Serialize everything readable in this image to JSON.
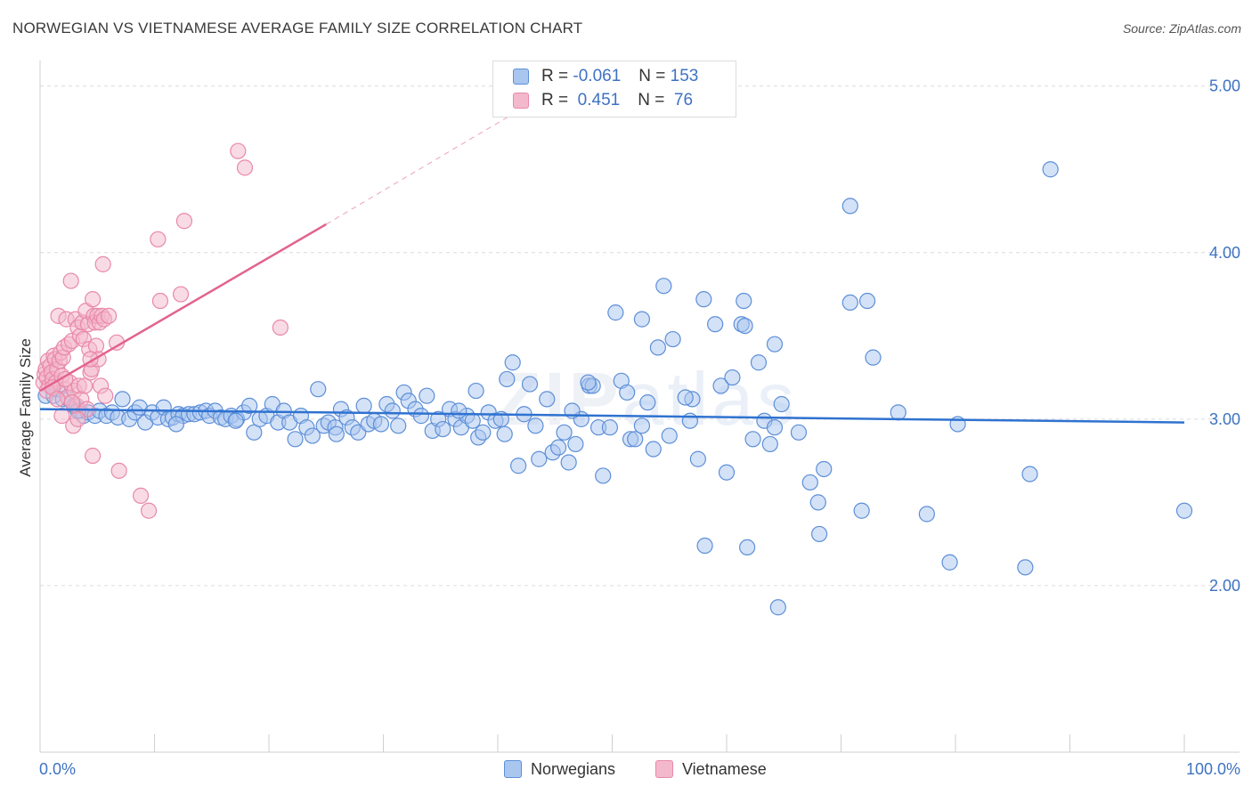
{
  "header": {
    "title": "NORWEGIAN VS VIETNAMESE AVERAGE FAMILY SIZE CORRELATION CHART",
    "source": "Source: ZipAtlas.com"
  },
  "watermark": {
    "zip": "ZIP",
    "atlas": "atlas"
  },
  "legend": {
    "rows": [
      {
        "r_label": "R = ",
        "r_value": "-0.061",
        "n_label": "N = ",
        "n_value": "153"
      },
      {
        "r_label": "R = ",
        "r_value": " 0.451",
        "n_label": "N = ",
        "n_value": " 76"
      }
    ],
    "series": [
      "Norwegians",
      "Vietnamese"
    ]
  },
  "colors": {
    "norwegians_fill": "#a9c6ef",
    "norwegians_stroke": "#5d8fd8",
    "norwegians_line": "#2f72d0",
    "vietnamese_fill": "#f4b8cc",
    "vietnamese_stroke": "#e889a8",
    "vietnamese_line": "#e2628f",
    "grid": "#dcdcdc",
    "axis_label": "#3e72c2"
  },
  "chart_data": {
    "type": "scatter",
    "title": "NORWEGIAN VS VIETNAMESE AVERAGE FAMILY SIZE CORRELATION CHART",
    "xlabel": "",
    "ylabel": "Average Family Size",
    "x_tick_labels": [
      "0.0%",
      "100.0%"
    ],
    "y_ticks": [
      2,
      3,
      4,
      5
    ],
    "y_tick_labels": [
      "2.00",
      "3.00",
      "4.00",
      "5.00"
    ],
    "xlim": [
      0,
      100
    ],
    "ylim": [
      1.0,
      5.1
    ],
    "grid": true,
    "legend_position": "bottom",
    "series": [
      {
        "name": "Norwegians",
        "R": -0.061,
        "N": 153,
        "trend": {
          "x": [
            0,
            100
          ],
          "y": [
            3.06,
            2.98
          ]
        },
        "points": [
          [
            0.5,
            3.14
          ],
          [
            1.2,
            3.14
          ],
          [
            1.5,
            3.18
          ],
          [
            2,
            3.12
          ],
          [
            2.5,
            3.12
          ],
          [
            3,
            3.08
          ],
          [
            3.5,
            3.05
          ],
          [
            3.8,
            3.02
          ],
          [
            4.2,
            3.04
          ],
          [
            4.8,
            3.02
          ],
          [
            5.2,
            3.05
          ],
          [
            5.8,
            3.02
          ],
          [
            6.3,
            3.04
          ],
          [
            6.8,
            3.01
          ],
          [
            7.2,
            3.12
          ],
          [
            7.8,
            3.0
          ],
          [
            8.3,
            3.04
          ],
          [
            8.7,
            3.07
          ],
          [
            9.2,
            2.98
          ],
          [
            9.8,
            3.04
          ],
          [
            10.3,
            3.01
          ],
          [
            10.8,
            3.07
          ],
          [
            11.2,
            3.0
          ],
          [
            11.6,
            3.01
          ],
          [
            12.1,
            3.03
          ],
          [
            12.5,
            3.02
          ],
          [
            13,
            3.03
          ],
          [
            13.5,
            3.03
          ],
          [
            14,
            3.04
          ],
          [
            14.5,
            3.05
          ],
          [
            14.8,
            3.02
          ],
          [
            15.3,
            3.05
          ],
          [
            15.8,
            3.01
          ],
          [
            16.2,
            3.0
          ],
          [
            16.7,
            3.02
          ],
          [
            17.2,
            3.0
          ],
          [
            17.8,
            3.04
          ],
          [
            18.3,
            3.08
          ],
          [
            18.7,
            2.92
          ],
          [
            19.2,
            3.0
          ],
          [
            19.8,
            3.02
          ],
          [
            20.3,
            3.09
          ],
          [
            20.8,
            2.98
          ],
          [
            21.3,
            3.05
          ],
          [
            21.8,
            2.98
          ],
          [
            22.3,
            2.88
          ],
          [
            22.8,
            3.02
          ],
          [
            23.3,
            2.95
          ],
          [
            23.8,
            2.9
          ],
          [
            24.3,
            3.18
          ],
          [
            24.8,
            2.96
          ],
          [
            25.2,
            2.98
          ],
          [
            25.8,
            2.95
          ],
          [
            26.3,
            3.06
          ],
          [
            26.8,
            3.01
          ],
          [
            27.3,
            2.95
          ],
          [
            27.8,
            2.92
          ],
          [
            28.3,
            3.08
          ],
          [
            28.7,
            2.97
          ],
          [
            29.2,
            2.99
          ],
          [
            29.8,
            2.97
          ],
          [
            30.3,
            3.09
          ],
          [
            30.8,
            3.05
          ],
          [
            31.3,
            2.96
          ],
          [
            31.8,
            3.16
          ],
          [
            32.2,
            3.11
          ],
          [
            32.8,
            3.06
          ],
          [
            33.3,
            3.02
          ],
          [
            33.8,
            3.14
          ],
          [
            34.3,
            2.93
          ],
          [
            34.8,
            3.0
          ],
          [
            35.2,
            2.94
          ],
          [
            35.8,
            3.06
          ],
          [
            36.3,
            3.0
          ],
          [
            36.8,
            2.95
          ],
          [
            37.3,
            3.02
          ],
          [
            37.8,
            2.99
          ],
          [
            38.3,
            2.89
          ],
          [
            38.7,
            2.92
          ],
          [
            39.2,
            3.04
          ],
          [
            39.8,
            2.99
          ],
          [
            40.3,
            3.0
          ],
          [
            40.8,
            3.24
          ],
          [
            41.3,
            3.34
          ],
          [
            41.8,
            2.72
          ],
          [
            42.3,
            3.03
          ],
          [
            42.8,
            3.21
          ],
          [
            43.3,
            2.96
          ],
          [
            43.6,
            2.76
          ],
          [
            44.3,
            3.12
          ],
          [
            44.8,
            2.8
          ],
          [
            45.3,
            2.83
          ],
          [
            45.8,
            2.92
          ],
          [
            46.2,
            2.74
          ],
          [
            46.8,
            2.85
          ],
          [
            47.3,
            3.0
          ],
          [
            48.0,
            3.2
          ],
          [
            48.3,
            3.2
          ],
          [
            48.8,
            2.95
          ],
          [
            49.2,
            2.66
          ],
          [
            49.8,
            2.95
          ],
          [
            50.3,
            3.64
          ],
          [
            50.8,
            3.23
          ],
          [
            51.3,
            3.16
          ],
          [
            51.6,
            2.88
          ],
          [
            52.0,
            2.88
          ],
          [
            52.6,
            2.96
          ],
          [
            53.1,
            3.1
          ],
          [
            53.6,
            2.82
          ],
          [
            54.0,
            3.43
          ],
          [
            54.5,
            3.8
          ],
          [
            55.0,
            2.9
          ],
          [
            55.3,
            3.48
          ],
          [
            56.8,
            2.99
          ],
          [
            57.0,
            3.12
          ],
          [
            57.5,
            2.76
          ],
          [
            58.0,
            3.72
          ],
          [
            59.0,
            3.57
          ],
          [
            59.5,
            3.2
          ],
          [
            60.0,
            2.68
          ],
          [
            60.5,
            3.25
          ],
          [
            61.3,
            3.57
          ],
          [
            61.5,
            3.71
          ],
          [
            62.3,
            2.88
          ],
          [
            62.8,
            3.34
          ],
          [
            63.3,
            2.99
          ],
          [
            63.8,
            2.85
          ],
          [
            64.2,
            3.45
          ],
          [
            64.8,
            3.09
          ],
          [
            66.3,
            2.92
          ],
          [
            67.3,
            2.62
          ],
          [
            68.0,
            2.5
          ],
          [
            68.5,
            2.7
          ],
          [
            70.8,
            3.7
          ],
          [
            71.8,
            2.45
          ],
          [
            72.8,
            3.37
          ],
          [
            75.0,
            3.04
          ],
          [
            77.5,
            2.43
          ],
          [
            80.2,
            2.97
          ],
          [
            86.5,
            2.67
          ],
          [
            100,
            2.45
          ],
          [
            88.3,
            4.5
          ],
          [
            70.8,
            4.28
          ],
          [
            61.8,
            2.23
          ],
          [
            64.5,
            1.87
          ],
          [
            68.1,
            2.31
          ],
          [
            79.5,
            2.14
          ],
          [
            86.1,
            2.11
          ],
          [
            58.1,
            2.24
          ],
          [
            72.3,
            3.71
          ],
          [
            61.6,
            3.56
          ],
          [
            40.6,
            2.91
          ],
          [
            56.4,
            3.13
          ],
          [
            46.5,
            3.05
          ],
          [
            36.6,
            3.05
          ],
          [
            25.9,
            2.91
          ],
          [
            17.1,
            2.99
          ],
          [
            11.9,
            2.97
          ],
          [
            3.3,
            3.05
          ],
          [
            47.9,
            3.22
          ],
          [
            52.6,
            3.6
          ],
          [
            64.2,
            2.95
          ],
          [
            38.1,
            3.17
          ]
        ]
      },
      {
        "name": "Vietnamese",
        "R": 0.451,
        "N": 76,
        "trend": {
          "x": [
            0,
            25
          ],
          "y": [
            3.17,
            4.17
          ],
          "dashed_extension_to": [
            42,
            4.86
          ]
        },
        "points": [
          [
            0.3,
            3.22
          ],
          [
            0.4,
            3.27
          ],
          [
            0.5,
            3.3
          ],
          [
            0.6,
            3.25
          ],
          [
            0.7,
            3.35
          ],
          [
            0.8,
            3.2
          ],
          [
            0.9,
            3.32
          ],
          [
            1.0,
            3.28
          ],
          [
            1.1,
            3.24
          ],
          [
            1.2,
            3.38
          ],
          [
            1.3,
            3.36
          ],
          [
            1.4,
            3.22
          ],
          [
            1.5,
            3.3
          ],
          [
            1.6,
            3.62
          ],
          [
            1.7,
            3.35
          ],
          [
            1.8,
            3.4
          ],
          [
            1.9,
            3.26
          ],
          [
            2.0,
            3.37
          ],
          [
            2.1,
            3.43
          ],
          [
            2.2,
            3.18
          ],
          [
            2.3,
            3.6
          ],
          [
            2.4,
            3.13
          ],
          [
            2.5,
            3.45
          ],
          [
            2.6,
            3.22
          ],
          [
            2.7,
            3.83
          ],
          [
            2.8,
            3.47
          ],
          [
            2.9,
            2.96
          ],
          [
            3.0,
            3.17
          ],
          [
            3.1,
            3.6
          ],
          [
            3.2,
            3.08
          ],
          [
            3.3,
            3.55
          ],
          [
            3.4,
            3.2
          ],
          [
            3.5,
            3.5
          ],
          [
            3.6,
            3.12
          ],
          [
            3.7,
            3.58
          ],
          [
            3.8,
            3.48
          ],
          [
            3.9,
            3.2
          ],
          [
            4.0,
            3.65
          ],
          [
            4.1,
            3.06
          ],
          [
            4.2,
            3.57
          ],
          [
            4.3,
            3.42
          ],
          [
            4.4,
            3.28
          ],
          [
            4.5,
            3.3
          ],
          [
            4.6,
            3.72
          ],
          [
            4.7,
            3.62
          ],
          [
            4.8,
            3.58
          ],
          [
            4.9,
            3.44
          ],
          [
            5.0,
            3.62
          ],
          [
            5.1,
            3.36
          ],
          [
            5.2,
            3.58
          ],
          [
            5.3,
            3.2
          ],
          [
            5.4,
            3.62
          ],
          [
            5.5,
            3.93
          ],
          [
            5.6,
            3.6
          ],
          [
            5.7,
            3.14
          ],
          [
            6.0,
            3.62
          ],
          [
            6.7,
            3.46
          ],
          [
            6.9,
            2.69
          ],
          [
            8.8,
            2.54
          ],
          [
            9.5,
            2.45
          ],
          [
            10.3,
            4.08
          ],
          [
            10.5,
            3.71
          ],
          [
            12.3,
            3.75
          ],
          [
            12.6,
            4.19
          ],
          [
            17.3,
            4.61
          ],
          [
            17.9,
            4.51
          ],
          [
            21.0,
            3.55
          ],
          [
            4.6,
            2.78
          ],
          [
            1.9,
            3.02
          ],
          [
            3.3,
            3.0
          ],
          [
            0.6,
            3.17
          ],
          [
            1.1,
            3.19
          ],
          [
            2.2,
            3.24
          ],
          [
            2.8,
            3.1
          ],
          [
            1.5,
            3.12
          ],
          [
            4.4,
            3.36
          ]
        ]
      }
    ]
  }
}
